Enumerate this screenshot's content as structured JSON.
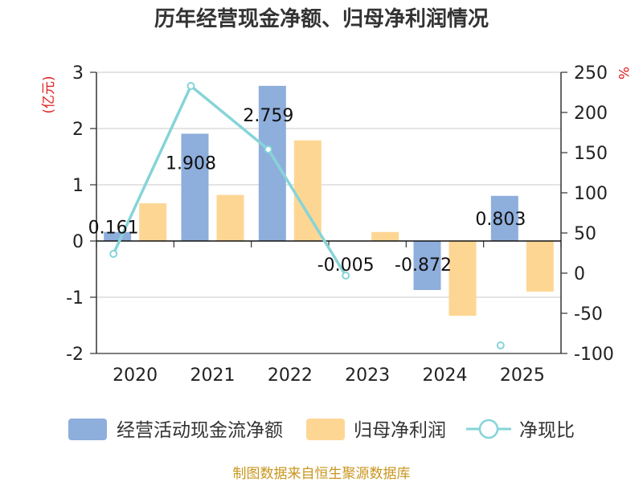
{
  "chart_data": {
    "type": "bar+line",
    "title": "历年经营现金净额、归母净利润情况",
    "categories": [
      "2020",
      "2021",
      "2022",
      "2023",
      "2024",
      "2025"
    ],
    "series": [
      {
        "name": "经营活动现金流净额",
        "kind": "bar",
        "axis": "left",
        "color": "#8eaedc",
        "values": [
          0.161,
          1.908,
          2.759,
          -0.005,
          -0.872,
          0.803
        ]
      },
      {
        "name": "归母净利润",
        "kind": "bar",
        "axis": "left",
        "color": "#fed694",
        "values": [
          0.67,
          0.82,
          1.79,
          0.16,
          -1.33,
          -0.9
        ]
      },
      {
        "name": "净现比",
        "kind": "line",
        "axis": "right",
        "color": "#86d4d8",
        "values": [
          24,
          233,
          154,
          -3,
          null,
          -90
        ]
      }
    ],
    "data_labels": [
      "0.161",
      "1.908",
      "2.759",
      "-0.005",
      "-0.872",
      "0.803"
    ],
    "left_axis": {
      "unit": "(亿元)",
      "ylim": [
        -2,
        3
      ],
      "ticks": [
        "3",
        "2",
        "1",
        "0",
        "-1",
        "-2"
      ]
    },
    "right_axis": {
      "unit": "%",
      "ylim": [
        -100,
        250
      ],
      "ticks": [
        "250",
        "200",
        "150",
        "100",
        "50",
        "0",
        "-50",
        "-100"
      ]
    },
    "grid": true,
    "legend_position": "bottom"
  },
  "source": "制图数据来自恒生聚源数据库"
}
